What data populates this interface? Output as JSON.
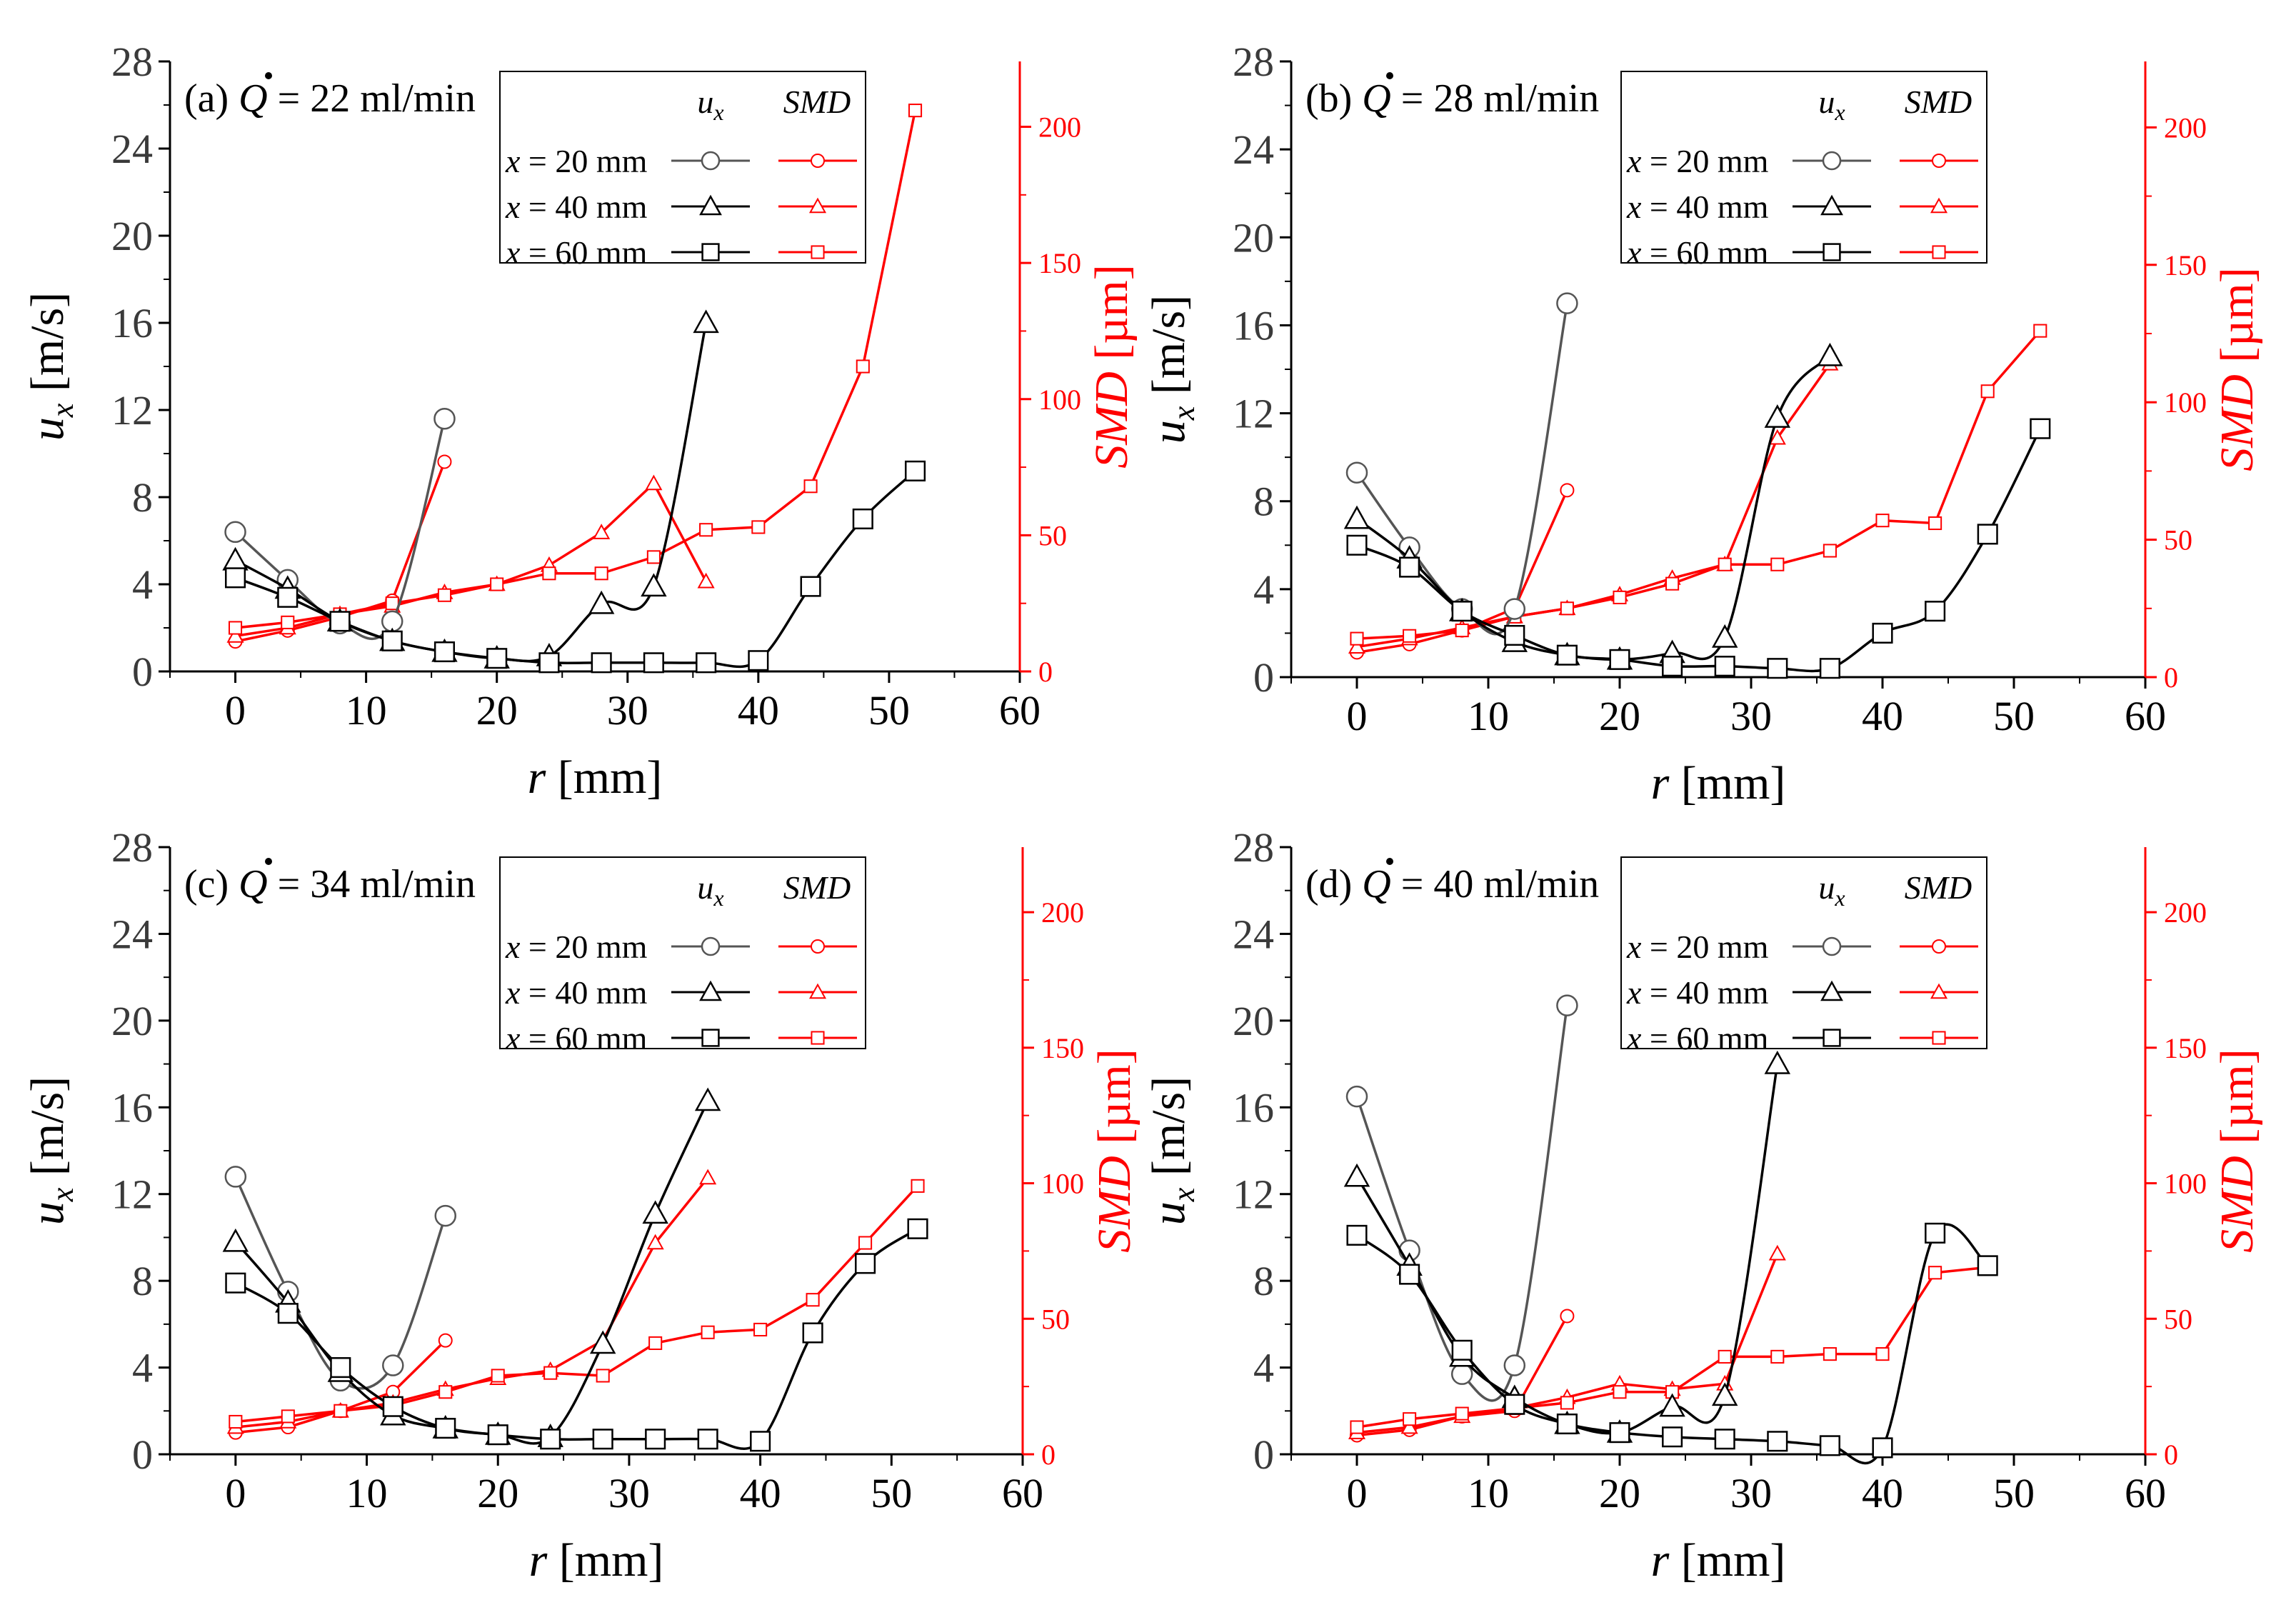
{
  "legend": {
    "col_ux": "u",
    "col_ux_sub": "x",
    "col_smd": "SMD",
    "rows": [
      "x = 20 mm",
      "x = 40 mm",
      "x = 60 mm"
    ]
  },
  "axes": {
    "xlabel": "r [mm]",
    "ylabel_left": "u",
    "ylabel_left_sub": "x",
    "ylabel_left_unit": " [m/s]",
    "ylabel_right": "SMD",
    "ylabel_right_unit": " [µm]"
  },
  "colors": {
    "ux": "#000000",
    "smd": "#ff0000",
    "ux_20mm": "#555555"
  },
  "chart_data": [
    {
      "type": "line",
      "label": "(a)",
      "flow": "= 22 ml/min",
      "xlabel": "r [mm]",
      "ylabel": "u_x [m/s]",
      "y2label": "SMD [µm]",
      "xlim": [
        -5,
        60
      ],
      "ylim": [
        0,
        28
      ],
      "y2lim": [
        0,
        224
      ],
      "xticks": [
        0,
        10,
        20,
        30,
        40,
        50,
        60
      ],
      "yticks": [
        0,
        4,
        8,
        12,
        16,
        20,
        24,
        28
      ],
      "y2ticks": [
        0,
        50,
        100,
        150,
        200
      ],
      "series_ux": [
        {
          "name": "x = 20 mm",
          "marker": "circle",
          "x": [
            0,
            4,
            8,
            12,
            16
          ],
          "y": [
            6.4,
            4.2,
            2.2,
            2.3,
            11.6
          ]
        },
        {
          "name": "x = 40 mm",
          "marker": "triangle",
          "x": [
            0,
            4,
            8,
            12,
            16,
            20,
            24,
            28,
            32,
            36
          ],
          "y": [
            5.1,
            3.8,
            2.3,
            1.4,
            0.9,
            0.6,
            0.7,
            3.1,
            3.9,
            16.0
          ]
        },
        {
          "name": "x = 60 mm",
          "marker": "square",
          "x": [
            0,
            4,
            8,
            12,
            16,
            20,
            24,
            28,
            32,
            36,
            40,
            44,
            48,
            52
          ],
          "y": [
            4.3,
            3.4,
            2.3,
            1.4,
            0.9,
            0.6,
            0.4,
            0.4,
            0.4,
            0.4,
            0.5,
            3.9,
            7.0,
            9.2
          ]
        }
      ],
      "series_smd": [
        {
          "name": "x = 20 mm",
          "marker": "circle",
          "x": [
            0,
            4,
            8,
            12,
            16
          ],
          "y": [
            11,
            15,
            20,
            26,
            77
          ]
        },
        {
          "name": "x = 40 mm",
          "marker": "triangle",
          "x": [
            0,
            4,
            8,
            12,
            16,
            20,
            24,
            28,
            32,
            36
          ],
          "y": [
            13,
            16,
            21,
            24,
            29,
            32,
            39,
            51,
            69,
            33
          ]
        },
        {
          "name": "x = 60 mm",
          "marker": "square",
          "x": [
            0,
            4,
            8,
            12,
            16,
            20,
            24,
            28,
            32,
            36,
            40,
            44,
            48,
            52
          ],
          "y": [
            16,
            18,
            21,
            25,
            28,
            32,
            36,
            36,
            42,
            52,
            53,
            68,
            112,
            206
          ]
        }
      ]
    },
    {
      "type": "line",
      "label": "(b)",
      "flow": "= 28 ml/min",
      "xlabel": "r [mm]",
      "ylabel": "u_x [m/s]",
      "y2label": "SMD [µm]",
      "xlim": [
        -5,
        60
      ],
      "ylim": [
        0,
        28
      ],
      "y2lim": [
        0,
        224
      ],
      "xticks": [
        0,
        10,
        20,
        30,
        40,
        50,
        60
      ],
      "yticks": [
        0,
        4,
        8,
        12,
        16,
        20,
        24,
        28
      ],
      "y2ticks": [
        0,
        50,
        100,
        150,
        200
      ],
      "series_ux": [
        {
          "name": "x = 20 mm",
          "marker": "circle",
          "x": [
            0,
            4,
            8,
            12,
            16
          ],
          "y": [
            9.3,
            5.9,
            3.1,
            3.1,
            17.0
          ]
        },
        {
          "name": "x = 40 mm",
          "marker": "triangle",
          "x": [
            0,
            4,
            8,
            12,
            16,
            20,
            24,
            28,
            32,
            36
          ],
          "y": [
            7.2,
            5.4,
            3.0,
            1.6,
            1.0,
            0.8,
            1.1,
            1.8,
            11.8,
            14.6
          ]
        },
        {
          "name": "x = 60 mm",
          "marker": "square",
          "x": [
            0,
            4,
            8,
            12,
            16,
            20,
            24,
            28,
            32,
            36,
            40,
            44,
            48,
            52
          ],
          "y": [
            6.0,
            5.0,
            3.0,
            1.9,
            1.0,
            0.8,
            0.5,
            0.5,
            0.4,
            0.4,
            2.0,
            3.0,
            6.5,
            11.3
          ]
        }
      ],
      "series_smd": [
        {
          "name": "x = 20 mm",
          "marker": "circle",
          "x": [
            0,
            4,
            8,
            12,
            16
          ],
          "y": [
            9,
            12,
            17,
            25,
            68
          ]
        },
        {
          "name": "x = 40 mm",
          "marker": "triangle",
          "x": [
            0,
            4,
            8,
            12,
            16,
            20,
            24,
            28,
            32,
            36
          ],
          "y": [
            11,
            14,
            18,
            22,
            25,
            30,
            36,
            41,
            87,
            114
          ]
        },
        {
          "name": "x = 60 mm",
          "marker": "square",
          "x": [
            0,
            4,
            8,
            12,
            16,
            20,
            24,
            28,
            32,
            36,
            40,
            44,
            48,
            52
          ],
          "y": [
            14,
            15,
            17,
            22,
            25,
            29,
            34,
            41,
            41,
            46,
            57,
            56,
            104,
            126
          ]
        }
      ]
    },
    {
      "type": "line",
      "label": "(c)",
      "flow": "= 34 ml/min",
      "xlabel": "r [mm]",
      "ylabel": "u_x [m/s]",
      "y2label": "SMD [µm]",
      "xlim": [
        -5,
        60
      ],
      "ylim": [
        0,
        28
      ],
      "y2lim": [
        0,
        224
      ],
      "xticks": [
        0,
        10,
        20,
        30,
        40,
        50,
        60
      ],
      "yticks": [
        0,
        4,
        8,
        12,
        16,
        20,
        24,
        28
      ],
      "y2ticks": [
        0,
        50,
        100,
        150,
        200
      ],
      "series_ux": [
        {
          "name": "x = 20 mm",
          "marker": "circle",
          "x": [
            0,
            4,
            8,
            12,
            16
          ],
          "y": [
            12.8,
            7.5,
            3.4,
            4.1,
            11.0
          ]
        },
        {
          "name": "x = 40 mm",
          "marker": "triangle",
          "x": [
            0,
            4,
            8,
            12,
            16,
            20,
            24,
            28,
            32,
            36
          ],
          "y": [
            9.8,
            7.0,
            3.8,
            1.8,
            1.2,
            0.9,
            0.8,
            5.1,
            11.1,
            16.3
          ]
        },
        {
          "name": "x = 60 mm",
          "marker": "square",
          "x": [
            0,
            4,
            8,
            12,
            16,
            20,
            24,
            28,
            32,
            36,
            40,
            44,
            48,
            52
          ],
          "y": [
            7.9,
            6.5,
            4.0,
            2.2,
            1.2,
            0.9,
            0.7,
            0.7,
            0.7,
            0.7,
            0.6,
            5.6,
            8.8,
            10.4
          ]
        }
      ],
      "series_smd": [
        {
          "name": "x = 20 mm",
          "marker": "circle",
          "x": [
            0,
            4,
            8,
            12,
            16
          ],
          "y": [
            8,
            10,
            16,
            23,
            42
          ]
        },
        {
          "name": "x = 40 mm",
          "marker": "triangle",
          "x": [
            0,
            4,
            8,
            12,
            16,
            20,
            24,
            28,
            32,
            36
          ],
          "y": [
            10,
            12,
            16,
            19,
            24,
            28,
            31,
            42,
            78,
            102
          ]
        },
        {
          "name": "x = 60 mm",
          "marker": "square",
          "x": [
            0,
            4,
            8,
            12,
            16,
            20,
            24,
            28,
            32,
            36,
            40,
            44,
            48,
            52
          ],
          "y": [
            12,
            14,
            16,
            18,
            23,
            29,
            30,
            29,
            41,
            45,
            46,
            57,
            78,
            99
          ]
        }
      ]
    },
    {
      "type": "line",
      "label": "(d)",
      "flow": "= 40 ml/min",
      "xlabel": "r [mm]",
      "ylabel": "u_x [m/s]",
      "y2label": "SMD [µm]",
      "xlim": [
        -5,
        60
      ],
      "ylim": [
        0,
        28
      ],
      "y2lim": [
        0,
        224
      ],
      "xticks": [
        0,
        10,
        20,
        30,
        40,
        50,
        60
      ],
      "yticks": [
        0,
        4,
        8,
        12,
        16,
        20,
        24,
        28
      ],
      "y2ticks": [
        0,
        50,
        100,
        150,
        200
      ],
      "series_ux": [
        {
          "name": "x = 20 mm",
          "marker": "circle",
          "x": [
            0,
            4,
            8,
            12,
            16
          ],
          "y": [
            16.5,
            9.4,
            3.7,
            4.1,
            20.7
          ]
        },
        {
          "name": "x = 40 mm",
          "marker": "triangle",
          "x": [
            0,
            4,
            8,
            12,
            16,
            20,
            24,
            28,
            32
          ],
          "y": [
            12.8,
            8.7,
            4.5,
            2.6,
            1.4,
            1.0,
            2.2,
            2.7,
            18.0
          ]
        },
        {
          "name": "x = 60 mm",
          "marker": "square",
          "x": [
            0,
            4,
            8,
            12,
            16,
            20,
            24,
            28,
            32,
            36,
            40,
            44,
            48
          ],
          "y": [
            10.1,
            8.3,
            4.8,
            2.3,
            1.4,
            1.0,
            0.8,
            0.7,
            0.6,
            0.4,
            0.3,
            10.2,
            8.7
          ]
        }
      ],
      "series_smd": [
        {
          "name": "x = 20 mm",
          "marker": "circle",
          "x": [
            0,
            4,
            8,
            12,
            16
          ],
          "y": [
            7,
            9,
            14,
            16,
            51
          ]
        },
        {
          "name": "x = 40 mm",
          "marker": "triangle",
          "x": [
            0,
            4,
            8,
            12,
            16,
            20,
            24,
            28,
            32
          ],
          "y": [
            8,
            10,
            14,
            17,
            21,
            26,
            24,
            26,
            74
          ]
        },
        {
          "name": "x = 60 mm",
          "marker": "square",
          "x": [
            0,
            4,
            8,
            12,
            16,
            20,
            24,
            28,
            32,
            36,
            40,
            44,
            48
          ],
          "y": [
            10,
            13,
            15,
            17,
            19,
            23,
            23,
            36,
            36,
            37,
            37,
            67,
            69
          ]
        }
      ]
    }
  ]
}
